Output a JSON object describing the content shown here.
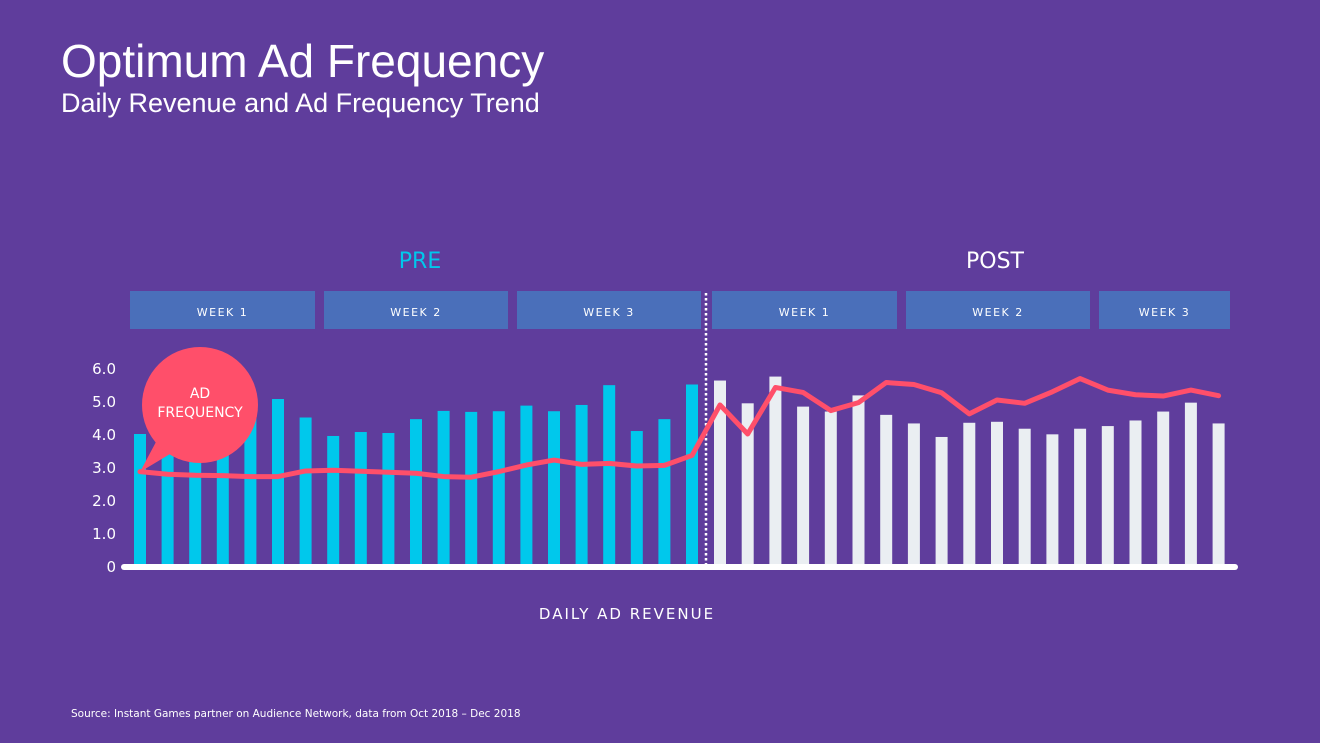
{
  "title": "Optimum Ad Frequency",
  "subtitle": "Daily Revenue and Ad Frequency Trend",
  "source": "Source: Instant Games partner on Audience Network, data from Oct 2018 – Dec 2018",
  "colors": {
    "background": "#5f3d9c",
    "pre_bars": "#00c8ec",
    "post_bars": "#eaeef2",
    "line": "#ff4f6a",
    "week_box": "#4a6fba",
    "pre_label": "#00c8ec"
  },
  "chart_data": {
    "type": "bar+line",
    "xlabel": "DAILY AD REVENUE",
    "ylim": [
      0,
      6
    ],
    "yticks": [
      "0",
      "1.0",
      "2.0",
      "3.0",
      "4.0",
      "5.0",
      "6.0"
    ],
    "grid": false,
    "periods": [
      {
        "label": "PRE",
        "weeks": [
          "WEEK 1",
          "WEEK 2",
          "WEEK 3"
        ]
      },
      {
        "label": "POST",
        "weeks": [
          "WEEK 1",
          "WEEK 2",
          "WEEK 3"
        ]
      }
    ],
    "annotation": {
      "line1": "AD",
      "line2": "FREQUENCY"
    },
    "series": [
      {
        "period": "PRE",
        "type": "bar",
        "values": [
          4.0,
          3.5,
          3.3,
          3.6,
          4.5,
          5.06,
          4.5,
          3.94,
          4.06,
          4.03,
          4.45,
          4.7,
          4.67,
          4.69,
          4.86,
          4.69,
          4.88,
          5.48,
          4.09,
          4.45,
          5.5
        ]
      },
      {
        "period": "POST",
        "type": "bar",
        "values": [
          5.62,
          4.93,
          5.74,
          4.83,
          4.68,
          5.17,
          4.58,
          4.32,
          3.91,
          4.34,
          4.37,
          4.16,
          3.99,
          4.16,
          4.24,
          4.41,
          4.68,
          4.95,
          4.32
        ]
      },
      {
        "name": "AD FREQUENCY",
        "type": "line",
        "values": [
          2.86,
          2.78,
          2.75,
          2.74,
          2.71,
          2.71,
          2.88,
          2.9,
          2.87,
          2.84,
          2.81,
          2.71,
          2.69,
          2.86,
          3.06,
          3.21,
          3.08,
          3.11,
          3.03,
          3.05,
          3.35,
          4.88,
          4.0,
          5.41,
          5.26,
          4.71,
          4.95,
          5.56,
          5.5,
          5.25,
          4.61,
          5.03,
          4.93,
          5.28,
          5.68,
          5.33,
          5.19,
          5.15,
          5.33,
          5.16
        ]
      }
    ]
  }
}
